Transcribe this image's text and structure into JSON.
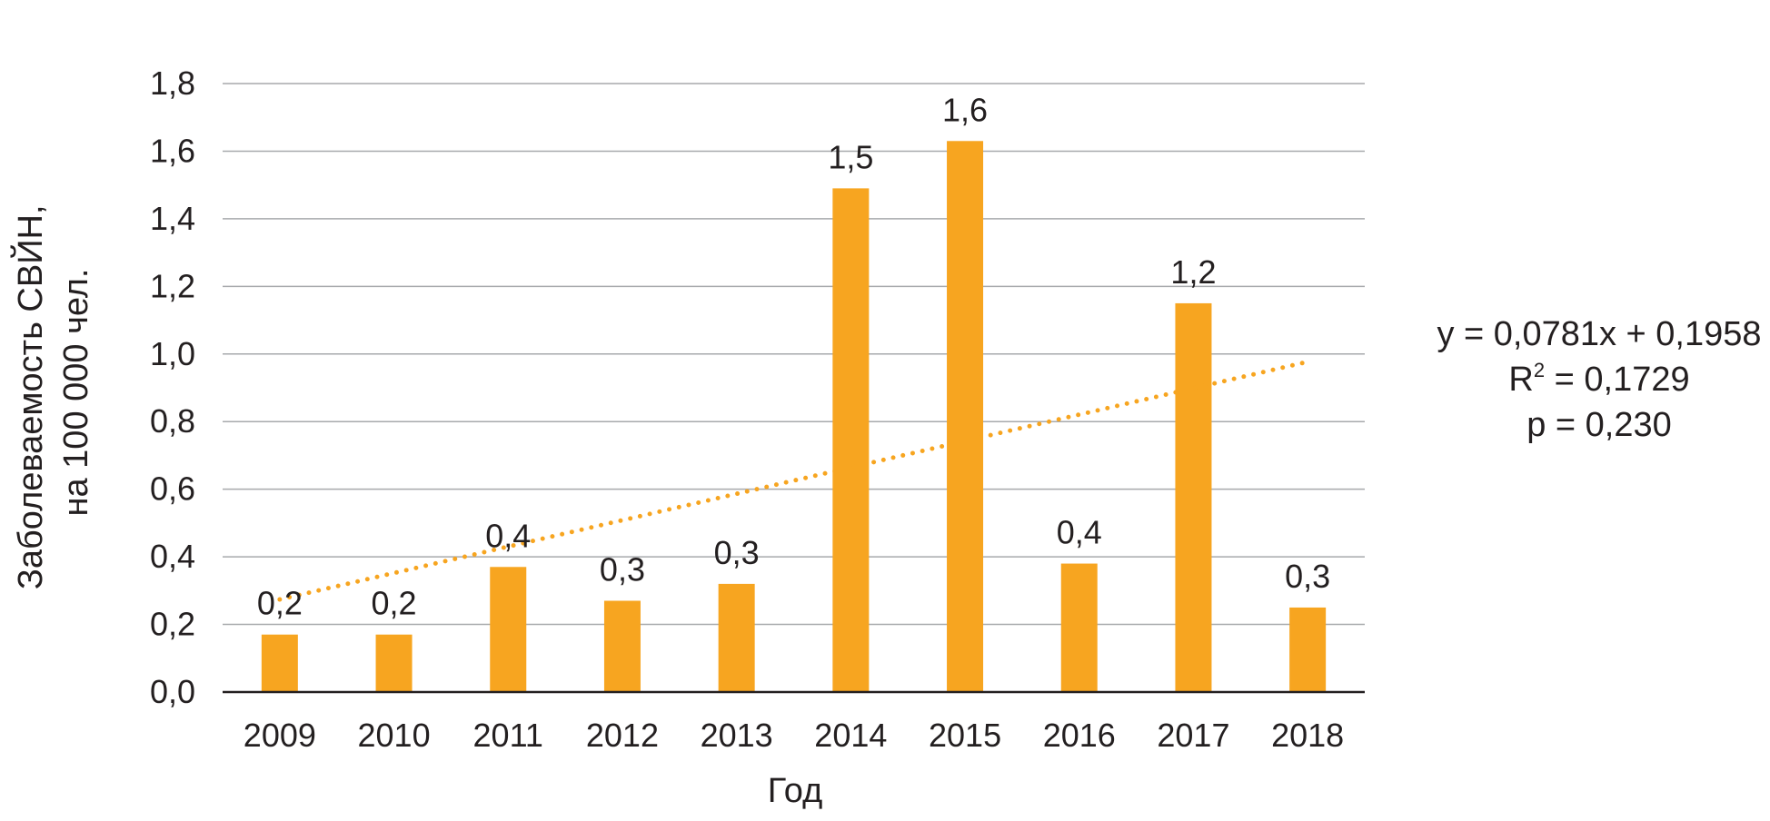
{
  "chart_data": {
    "type": "bar",
    "categories": [
      "2009",
      "2010",
      "2011",
      "2012",
      "2013",
      "2014",
      "2015",
      "2016",
      "2017",
      "2018"
    ],
    "values": [
      0.17,
      0.17,
      0.37,
      0.27,
      0.32,
      1.49,
      1.63,
      0.38,
      1.15,
      0.25
    ],
    "data_labels": [
      "0,2",
      "0,2",
      "0,4",
      "0,3",
      "0,3",
      "1,5",
      "1,6",
      "0,4",
      "1,2",
      "0,3"
    ],
    "ylabel_line1": "Заболеваемость СВЙН,",
    "ylabel_line2": "на 100 000 чел.",
    "xlabel": "Год",
    "ylim": [
      0,
      1.8
    ],
    "yticks": [
      0,
      0.2,
      0.4,
      0.6,
      0.8,
      1.0,
      1.2,
      1.4,
      1.6,
      1.8
    ],
    "ytick_labels": [
      "0,0",
      "0,2",
      "0,4",
      "0,6",
      "0,8",
      "1,0",
      "1,2",
      "1,4",
      "1,6",
      "1,8"
    ],
    "grid": true,
    "bar_color": "#f7a520",
    "trendline": {
      "type": "linear",
      "style": "dotted",
      "color": "#f7a520",
      "slope": 0.0781,
      "intercept": 0.1958,
      "equation": "y = 0,0781x + 0,1958",
      "r2_prefix": "R",
      "r2_exp": "2",
      "r2_value": " = 0,1729",
      "p_text": "p = 0,230"
    }
  }
}
